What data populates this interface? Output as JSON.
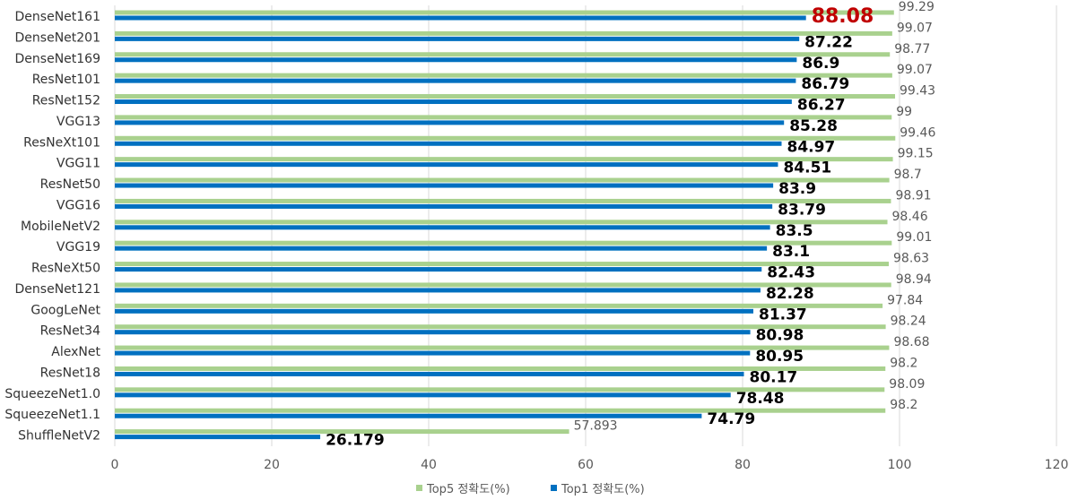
{
  "chart_data": {
    "type": "bar",
    "orientation": "horizontal",
    "categories": [
      "DenseNet161",
      "DenseNet201",
      "DenseNet169",
      "ResNet101",
      "ResNet152",
      "VGG13",
      "ResNeXt101",
      "VGG11",
      "ResNet50",
      "VGG16",
      "MobileNetV2",
      "VGG19",
      "ResNeXt50",
      "DenseNet121",
      "GoogLeNet",
      "ResNet34",
      "AlexNet",
      "ResNet18",
      "SqueezeNet1.0",
      "SqueezeNet1.1",
      "ShuffleNetV2"
    ],
    "series": [
      {
        "name": "Top5 정확도(%)",
        "color": "#a9d18e",
        "values": [
          99.29,
          99.07,
          98.77,
          99.07,
          99.43,
          99,
          99.46,
          99.15,
          98.7,
          98.91,
          98.46,
          99.01,
          98.63,
          98.94,
          97.84,
          98.24,
          98.68,
          98.2,
          98.09,
          98.2,
          57.893
        ],
        "labels": [
          "99.29",
          "99.07",
          "98.77",
          "99.07",
          "99.43",
          "99",
          "99.46",
          "99.15",
          "98.7",
          "98.91",
          "98.46",
          "99.01",
          "98.63",
          "98.94",
          "97.84",
          "98.24",
          "98.68",
          "98.2",
          "98.09",
          "98.2",
          "57.893"
        ]
      },
      {
        "name": "Top1 정확도(%)",
        "color": "#0070c0",
        "values": [
          88.08,
          87.22,
          86.9,
          86.79,
          86.27,
          85.28,
          84.97,
          84.51,
          83.9,
          83.79,
          83.5,
          83.1,
          82.43,
          82.28,
          81.37,
          80.98,
          80.95,
          80.17,
          78.48,
          74.79,
          26.179
        ],
        "labels": [
          "88.08",
          "87.22",
          "86.9",
          "86.79",
          "86.27",
          "85.28",
          "84.97",
          "84.51",
          "83.9",
          "83.79",
          "83.5",
          "83.1",
          "82.43",
          "82.28",
          "81.37",
          "80.98",
          "80.95",
          "80.17",
          "78.48",
          "74.79",
          "26.179"
        ]
      }
    ],
    "highlight": {
      "series": "Top1 정확도(%)",
      "index": 0,
      "color": "#c00000"
    },
    "xticks": [
      "0",
      "20",
      "40",
      "60",
      "80",
      "100",
      "120"
    ],
    "xlim": [
      0,
      120
    ],
    "grid": "vertical",
    "legend_position": "bottom"
  }
}
